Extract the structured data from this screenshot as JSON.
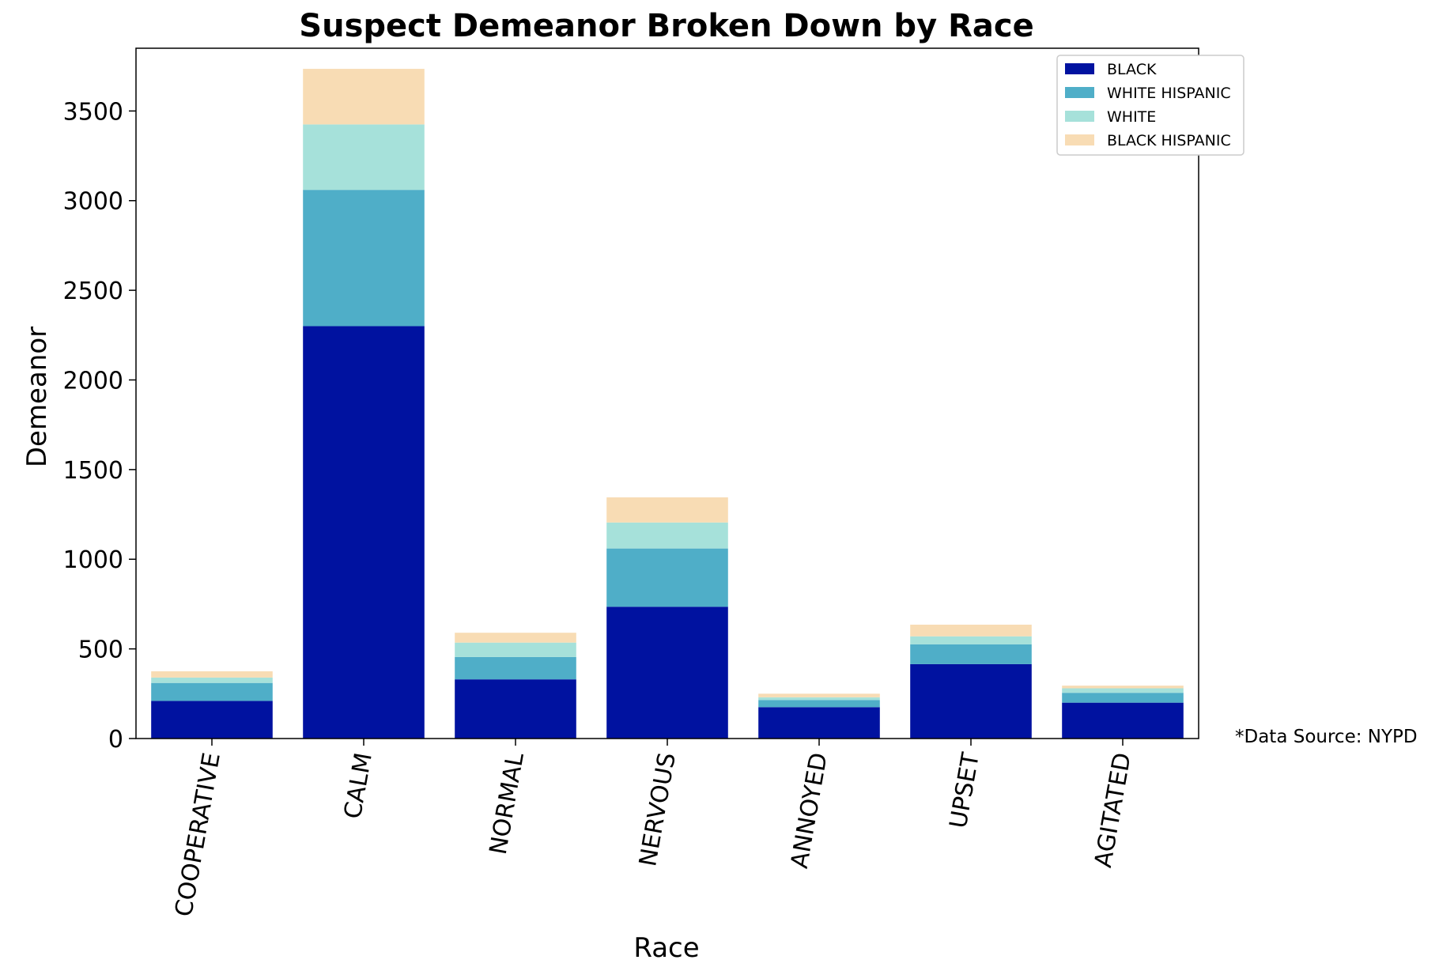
{
  "chart_data": {
    "type": "bar",
    "stacked": true,
    "title": "Suspect Demeanor Broken Down by Race",
    "xlabel": "Race",
    "ylabel": "Demeanor",
    "ylim": [
      0,
      3850
    ],
    "yticks": [
      0,
      500,
      1000,
      1500,
      2000,
      2500,
      3000,
      3500
    ],
    "categories": [
      "COOPERATIVE",
      "CALM",
      "NORMAL",
      "NERVOUS",
      "ANNOYED",
      "UPSET",
      "AGITATED"
    ],
    "series": [
      {
        "name": "BLACK",
        "color": "#0012a0",
        "values": [
          210,
          2300,
          330,
          735,
          175,
          415,
          200
        ]
      },
      {
        "name": "WHITE HISPANIC",
        "color": "#4faec8",
        "values": [
          100,
          760,
          125,
          325,
          40,
          110,
          55
        ]
      },
      {
        "name": "WHITE",
        "color": "#a6e1da",
        "values": [
          30,
          365,
          80,
          145,
          15,
          45,
          25
        ]
      },
      {
        "name": "BLACK HISPANIC",
        "color": "#f8dcb4",
        "values": [
          35,
          310,
          55,
          140,
          20,
          65,
          15
        ]
      }
    ],
    "grid": false,
    "legend_position": "top-right",
    "annotation": "*Data Source: NYPD"
  }
}
